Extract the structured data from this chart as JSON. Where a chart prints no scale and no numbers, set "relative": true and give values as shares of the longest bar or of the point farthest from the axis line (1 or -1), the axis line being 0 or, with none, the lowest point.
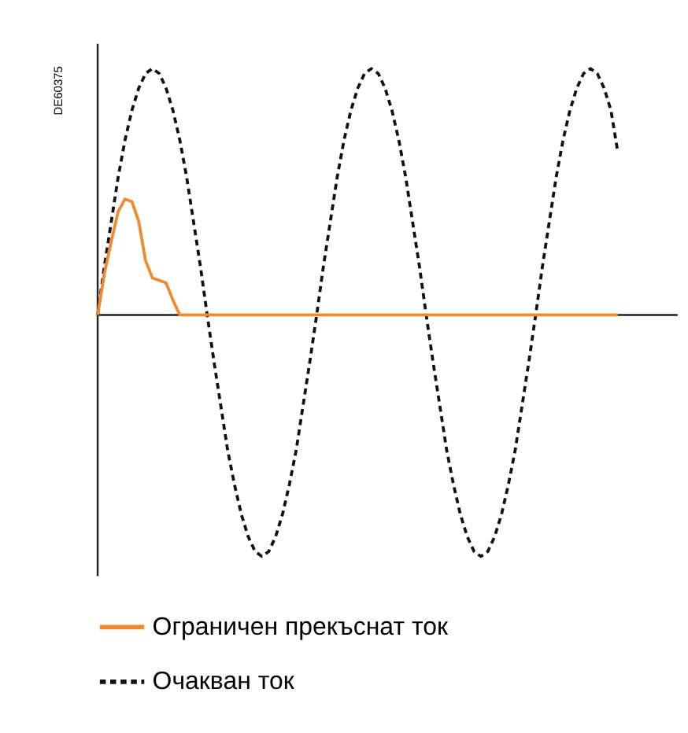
{
  "chart_data": {
    "type": "line",
    "relative": true,
    "tick_labels": false,
    "grid": false,
    "legend": "bottom",
    "annotations": [
      "DE60375"
    ],
    "categories": [
      null,
      null,
      null,
      null,
      null,
      null,
      null,
      null,
      null,
      null,
      null,
      null,
      null,
      null,
      null,
      null,
      null,
      null,
      null,
      null,
      null,
      null,
      null,
      null,
      null,
      null,
      null,
      null,
      null,
      null,
      null,
      null,
      null,
      null,
      null,
      null,
      null,
      null,
      null,
      null,
      null,
      null,
      null,
      null,
      null,
      null,
      null,
      null,
      null,
      null,
      null,
      null,
      null,
      null,
      null,
      null,
      null,
      null,
      null,
      null,
      null,
      null,
      null,
      null,
      null,
      null,
      null,
      null,
      null,
      null,
      null,
      null,
      null,
      null,
      null,
      null,
      null
    ],
    "series": [
      {
        "name": "Ограничен прекъснат ток",
        "color": "#f08a2c",
        "line_style": "solid",
        "values": [
          0,
          0.17,
          0.3,
          0.42,
          0.47,
          0.46,
          0.38,
          0.22,
          0.15,
          0.14,
          0.13,
          0.06,
          0,
          0,
          0,
          0,
          0,
          0,
          0,
          0,
          0,
          0,
          0,
          0,
          0,
          0,
          0,
          0,
          0,
          0,
          0,
          0,
          0,
          0,
          0,
          0,
          0,
          0,
          0,
          0,
          0,
          0,
          0,
          0,
          0,
          0,
          0,
          0,
          0,
          0,
          0,
          0,
          0,
          0,
          0,
          0,
          0,
          0,
          0,
          0,
          0,
          0,
          0,
          0,
          0,
          0,
          0,
          0,
          0,
          0,
          0,
          0,
          0,
          0,
          0,
          0,
          0
        ]
      },
      {
        "name": "Очакван ток",
        "color": "#111111",
        "line_style": "dashed",
        "values": [
          0,
          0.2,
          0.38,
          0.56,
          0.71,
          0.83,
          0.92,
          0.98,
          1,
          0.98,
          0.92,
          0.83,
          0.71,
          0.56,
          0.38,
          0.2,
          0,
          -0.19,
          -0.37,
          -0.55,
          -0.69,
          -0.81,
          -0.9,
          -0.96,
          -0.98,
          -0.96,
          -0.9,
          -0.81,
          -0.69,
          -0.55,
          -0.37,
          -0.19,
          0,
          0.2,
          0.38,
          0.56,
          0.71,
          0.83,
          0.92,
          0.98,
          1,
          0.98,
          0.92,
          0.83,
          0.71,
          0.56,
          0.38,
          0.2,
          0,
          -0.19,
          -0.37,
          -0.55,
          -0.69,
          -0.81,
          -0.9,
          -0.96,
          -0.98,
          -0.96,
          -0.9,
          -0.81,
          -0.69,
          -0.55,
          -0.37,
          -0.19,
          0,
          0.2,
          0.38,
          0.56,
          0.71,
          0.83,
          0.92,
          0.98,
          1,
          0.98,
          0.92,
          0.83,
          0.66
        ]
      }
    ]
  }
}
